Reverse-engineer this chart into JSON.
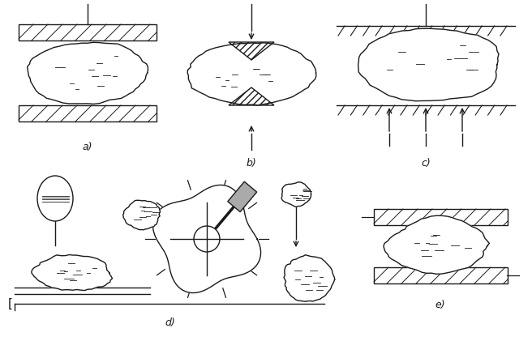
{
  "bg_color": "#ffffff",
  "line_color": "#1a1a1a",
  "label_a": "a)",
  "label_b": "b)",
  "label_c": "c)",
  "label_d": "d)",
  "label_e": "e)",
  "label_fontsize": 9,
  "figw": 6.56,
  "figh": 4.21,
  "dpi": 100
}
